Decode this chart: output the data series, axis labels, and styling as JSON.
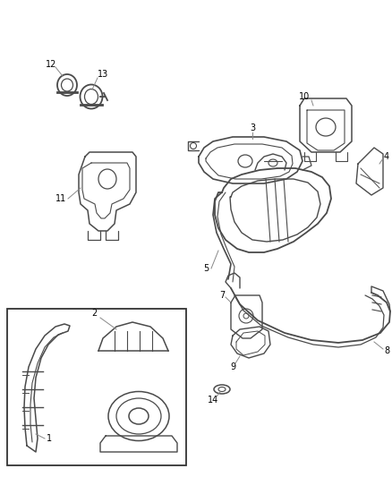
{
  "background_color": "#ffffff",
  "line_color": "#4a4a4a",
  "text_color": "#000000",
  "fig_width": 4.38,
  "fig_height": 5.33,
  "dpi": 100
}
